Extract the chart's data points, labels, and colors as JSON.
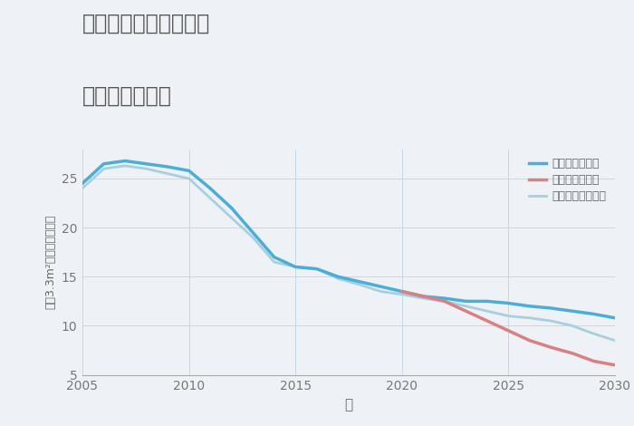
{
  "title_line1": "三重県伊賀市下川原の",
  "title_line2": "土地の価格推移",
  "xlabel": "年",
  "ylabel": "坪（3.3m²）単価（万円）",
  "background_color": "#eef2f7",
  "plot_background": "#eef2f7",
  "xlim": [
    2005,
    2030
  ],
  "ylim": [
    5,
    28
  ],
  "yticks": [
    5,
    10,
    15,
    20,
    25
  ],
  "xticks": [
    2005,
    2010,
    2015,
    2020,
    2025,
    2030
  ],
  "good_scenario": {
    "label": "グッドシナリオ",
    "color": "#4aaed9",
    "linewidth": 2.5,
    "years": [
      2005,
      2006,
      2007,
      2008,
      2009,
      2010,
      2011,
      2012,
      2013,
      2014,
      2015,
      2016,
      2017,
      2018,
      2019,
      2020,
      2021,
      2022,
      2023,
      2024,
      2025,
      2026,
      2027,
      2028,
      2029,
      2030
    ],
    "values": [
      24.5,
      26.5,
      26.8,
      26.5,
      26.2,
      25.8,
      24.0,
      22.0,
      19.5,
      17.0,
      16.0,
      15.8,
      15.0,
      14.5,
      14.0,
      13.5,
      13.0,
      12.8,
      12.5,
      12.5,
      12.3,
      12.0,
      11.8,
      11.5,
      11.2,
      10.8
    ]
  },
  "bad_scenario": {
    "label": "バッドシナリオ",
    "color": "#d98080",
    "linewidth": 2.5,
    "years": [
      2020,
      2021,
      2022,
      2023,
      2024,
      2025,
      2026,
      2027,
      2028,
      2029,
      2030
    ],
    "values": [
      13.5,
      13.0,
      12.5,
      11.5,
      10.5,
      9.5,
      8.5,
      7.8,
      7.2,
      6.4,
      6.0
    ]
  },
  "normal_scenario": {
    "label": "ノーマルシナリオ",
    "color": "#a8cfe0",
    "linewidth": 2.0,
    "years": [
      2005,
      2006,
      2007,
      2008,
      2009,
      2010,
      2011,
      2012,
      2013,
      2014,
      2015,
      2016,
      2017,
      2018,
      2019,
      2020,
      2021,
      2022,
      2023,
      2024,
      2025,
      2026,
      2027,
      2028,
      2029,
      2030
    ],
    "values": [
      24.0,
      26.0,
      26.3,
      26.0,
      25.5,
      25.0,
      23.0,
      21.0,
      19.0,
      16.5,
      16.0,
      15.8,
      14.8,
      14.2,
      13.5,
      13.2,
      12.8,
      12.5,
      12.0,
      11.5,
      11.0,
      10.8,
      10.5,
      10.0,
      9.2,
      8.5
    ]
  },
  "grid_color": "#c8d8e8",
  "title_color": "#555555",
  "tick_color": "#777777",
  "label_color": "#666666"
}
